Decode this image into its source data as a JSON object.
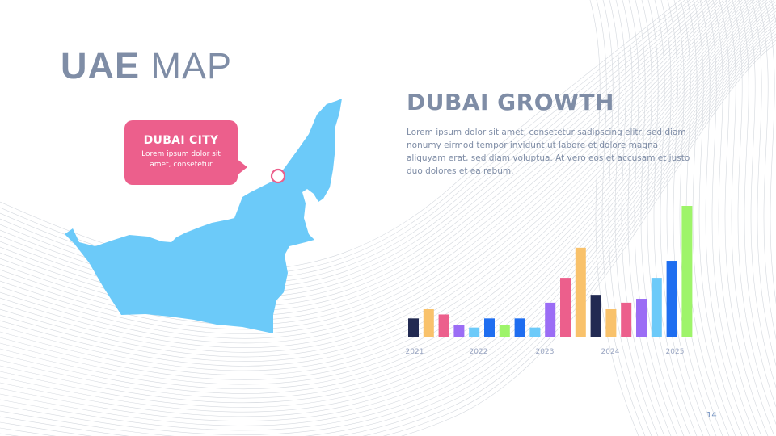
{
  "slide": {
    "title_bold": "UAE",
    "title_light": "MAP",
    "page_number": "14"
  },
  "callout": {
    "title": "DUBAI CITY",
    "text": "Lorem ipsum dolor sit amet, consetetur"
  },
  "growth": {
    "heading": "DUBAI GROWTH",
    "paragraph": "Lorem ipsum dolor sit amet, consetetur sadipscing elitr, sed diam nonumy eirmod tempor invidunt ut labore et dolore magna aliquyam erat, sed diam voluptua. At vero eos et accusam et justo duo dolores et ea rebum."
  },
  "colors": {
    "map": "#6ccaf9",
    "callout": "#ec5f8c",
    "title": "#7f8da6"
  },
  "chart_data": {
    "type": "bar",
    "title": "",
    "xlabel": "",
    "ylabel": "",
    "ylim": [
      0,
      10
    ],
    "grid": false,
    "tick_labels": [
      "2021",
      "2022",
      "2023",
      "2024",
      "2025"
    ],
    "bars": [
      {
        "value": 1.4,
        "color": "#222a52"
      },
      {
        "value": 2.1,
        "color": "#f9c26b"
      },
      {
        "value": 1.7,
        "color": "#ec5f8c"
      },
      {
        "value": 0.9,
        "color": "#9b6df5"
      },
      {
        "value": 0.7,
        "color": "#6ccaf9"
      },
      {
        "value": 1.4,
        "color": "#1f6ef0"
      },
      {
        "value": 0.9,
        "color": "#9ef46a"
      },
      {
        "value": 1.4,
        "color": "#1f6ef0"
      },
      {
        "value": 0.7,
        "color": "#6ccaf9"
      },
      {
        "value": 2.6,
        "color": "#9b6df5"
      },
      {
        "value": 4.5,
        "color": "#ec5f8c"
      },
      {
        "value": 6.8,
        "color": "#f9c26b"
      },
      {
        "value": 3.2,
        "color": "#222a52"
      },
      {
        "value": 2.1,
        "color": "#f9c26b"
      },
      {
        "value": 2.6,
        "color": "#ec5f8c"
      },
      {
        "value": 2.9,
        "color": "#9b6df5"
      },
      {
        "value": 4.5,
        "color": "#6ccaf9"
      },
      {
        "value": 5.8,
        "color": "#1f6ef0"
      },
      {
        "value": 10,
        "color": "#9ef46a"
      }
    ]
  }
}
